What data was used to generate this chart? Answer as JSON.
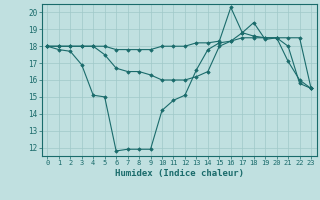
{
  "title": "",
  "xlabel": "Humidex (Indice chaleur)",
  "background_color": "#c0e0e0",
  "grid_color": "#a0c8c8",
  "line_color": "#1a6b6b",
  "xlim": [
    -0.5,
    23.5
  ],
  "ylim": [
    11.5,
    20.5
  ],
  "yticks": [
    12,
    13,
    14,
    15,
    16,
    17,
    18,
    19,
    20
  ],
  "xticks": [
    0,
    1,
    2,
    3,
    4,
    5,
    6,
    7,
    8,
    9,
    10,
    11,
    12,
    13,
    14,
    15,
    16,
    17,
    18,
    19,
    20,
    21,
    22,
    23
  ],
  "series": [
    [
      18.0,
      17.8,
      17.7,
      16.9,
      15.1,
      15.0,
      11.8,
      11.9,
      11.9,
      11.9,
      14.2,
      14.8,
      15.1,
      16.6,
      17.8,
      18.2,
      18.3,
      18.8,
      18.6,
      18.5,
      18.5,
      17.1,
      16.0,
      15.5
    ],
    [
      18.0,
      18.0,
      18.0,
      18.0,
      18.0,
      17.5,
      16.7,
      16.5,
      16.5,
      16.3,
      16.0,
      16.0,
      16.0,
      16.2,
      16.5,
      18.0,
      18.3,
      18.5,
      18.5,
      18.5,
      18.5,
      18.0,
      15.8,
      15.5
    ],
    [
      18.0,
      18.0,
      18.0,
      18.0,
      18.0,
      18.0,
      17.8,
      17.8,
      17.8,
      17.8,
      18.0,
      18.0,
      18.0,
      18.2,
      18.2,
      18.3,
      20.3,
      18.8,
      19.4,
      18.4,
      18.5,
      18.5,
      18.5,
      15.5
    ]
  ]
}
